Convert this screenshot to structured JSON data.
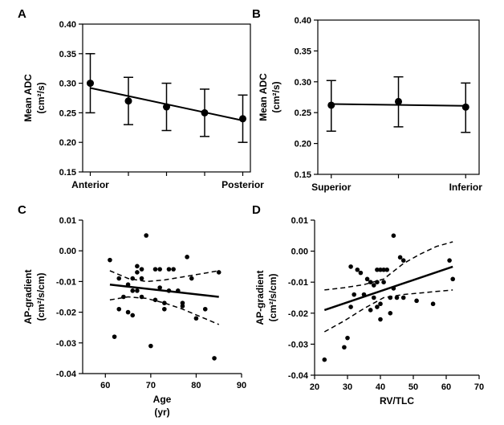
{
  "chart_data": [
    {
      "panel": "A",
      "type": "errorbar",
      "categories": [
        "Anterior",
        "",
        "",
        "",
        "Posterior"
      ],
      "x": [
        1,
        2,
        3,
        4,
        5
      ],
      "values": [
        0.3,
        0.27,
        0.26,
        0.25,
        0.24
      ],
      "err_low": [
        0.25,
        0.23,
        0.22,
        0.21,
        0.2
      ],
      "err_high": [
        0.35,
        0.31,
        0.3,
        0.29,
        0.28
      ],
      "fit": {
        "x": [
          1,
          5
        ],
        "y": [
          0.292,
          0.237
        ]
      },
      "ylabel": "Mean ADC",
      "ylabel_unit": "(cm²/s)",
      "ylim": [
        0.15,
        0.4
      ],
      "yticks": [
        "0.15",
        "0.20",
        "0.25",
        "0.30",
        "0.35",
        "0.40"
      ],
      "xlim": [
        0.8,
        5.2
      ]
    },
    {
      "panel": "B",
      "type": "errorbar",
      "categories": [
        "Superior",
        "",
        "Inferior"
      ],
      "x": [
        1,
        2,
        3
      ],
      "values": [
        0.262,
        0.268,
        0.259
      ],
      "err_low": [
        0.22,
        0.227,
        0.218
      ],
      "err_high": [
        0.302,
        0.308,
        0.298
      ],
      "fit": {
        "x": [
          1,
          3
        ],
        "y": [
          0.264,
          0.261
        ]
      },
      "ylabel": "Mean ADC",
      "ylabel_unit": "(cm²/s)",
      "ylim": [
        0.15,
        0.4
      ],
      "yticks": [
        "0.15",
        "0.20",
        "0.25",
        "0.30",
        "0.35",
        "0.40"
      ],
      "xlim": [
        0.8,
        3.2
      ]
    },
    {
      "panel": "C",
      "type": "scatter",
      "x": [
        61,
        62,
        63,
        63,
        64,
        65,
        65,
        66,
        66,
        66,
        67,
        67,
        67,
        68,
        68,
        68,
        69,
        70,
        71,
        71,
        72,
        72,
        73,
        73,
        74,
        74,
        75,
        76,
        77,
        77,
        78,
        79,
        80,
        82,
        84,
        85
      ],
      "y": [
        -0.003,
        -0.028,
        -0.009,
        -0.019,
        -0.015,
        -0.011,
        -0.02,
        -0.009,
        -0.013,
        -0.021,
        -0.005,
        -0.007,
        -0.013,
        -0.006,
        -0.009,
        -0.015,
        0.005,
        -0.031,
        -0.006,
        -0.016,
        -0.006,
        -0.012,
        -0.017,
        -0.019,
        -0.006,
        -0.013,
        -0.006,
        -0.013,
        -0.017,
        -0.018,
        -0.002,
        -0.009,
        -0.022,
        -0.019,
        -0.035,
        -0.007
      ],
      "fit": {
        "x": [
          61,
          85
        ],
        "y": [
          -0.011,
          -0.015
        ]
      },
      "ci_upper": {
        "x": [
          61,
          65,
          69,
          73,
          77,
          81,
          85
        ],
        "y": [
          -0.0065,
          -0.009,
          -0.01,
          -0.0095,
          -0.0085,
          -0.0075,
          -0.0065
        ]
      },
      "ci_lower": {
        "x": [
          61,
          65,
          69,
          73,
          77,
          81,
          85
        ],
        "y": [
          -0.016,
          -0.015,
          -0.0155,
          -0.017,
          -0.019,
          -0.0215,
          -0.024
        ]
      },
      "xlabel": "Age",
      "xlabel_unit": "(yr)",
      "ylabel": "AP-gradient",
      "ylabel_unit": "(cm²/s/cm)",
      "xlim": [
        55,
        90
      ],
      "ylim": [
        -0.04,
        0.01
      ],
      "xticks": [
        "60",
        "70",
        "80",
        "90"
      ],
      "yticks": [
        "-0.04",
        "-0.03",
        "-0.02",
        "-0.01",
        "0.00",
        "0.01"
      ]
    },
    {
      "panel": "D",
      "type": "scatter",
      "x": [
        23,
        29,
        30,
        31,
        31,
        32,
        33,
        34,
        35,
        36,
        37,
        37,
        38,
        38,
        39,
        39,
        39,
        40,
        40,
        40,
        41,
        41,
        42,
        43,
        43,
        44,
        44,
        45,
        46,
        47,
        47,
        51,
        56,
        61,
        62
      ],
      "y": [
        -0.035,
        -0.031,
        -0.028,
        -0.005,
        -0.018,
        -0.014,
        -0.006,
        -0.007,
        -0.014,
        -0.009,
        -0.019,
        -0.01,
        -0.015,
        -0.011,
        -0.006,
        -0.01,
        -0.018,
        -0.006,
        -0.017,
        -0.022,
        -0.006,
        -0.01,
        -0.006,
        -0.02,
        -0.015,
        0.005,
        -0.012,
        -0.015,
        -0.002,
        -0.003,
        -0.015,
        -0.016,
        -0.017,
        -0.003,
        -0.009
      ],
      "fit": {
        "x": [
          23,
          62
        ],
        "y": [
          -0.019,
          -0.005
        ]
      },
      "ci_upper": {
        "x": [
          23,
          29,
          35,
          41,
          47,
          52,
          57,
          62
        ],
        "y": [
          -0.0125,
          -0.0118,
          -0.0108,
          -0.009,
          -0.004,
          -0.001,
          0.0015,
          0.003
        ]
      },
      "ci_lower": {
        "x": [
          23,
          29,
          35,
          41,
          47,
          52,
          57,
          62
        ],
        "y": [
          -0.026,
          -0.0225,
          -0.0185,
          -0.015,
          -0.014,
          -0.0135,
          -0.013,
          -0.0125
        ]
      },
      "xlabel": "RV/TLC",
      "ylabel": "AP-gradient",
      "ylabel_unit": "(cm²/s/cm)",
      "xlim": [
        20,
        70
      ],
      "ylim": [
        -0.04,
        0.01
      ],
      "xticks": [
        "20",
        "30",
        "40",
        "50",
        "60",
        "70"
      ],
      "yticks": [
        "-0.04",
        "-0.03",
        "-0.02",
        "-0.01",
        "0.00",
        "0.01"
      ]
    }
  ]
}
